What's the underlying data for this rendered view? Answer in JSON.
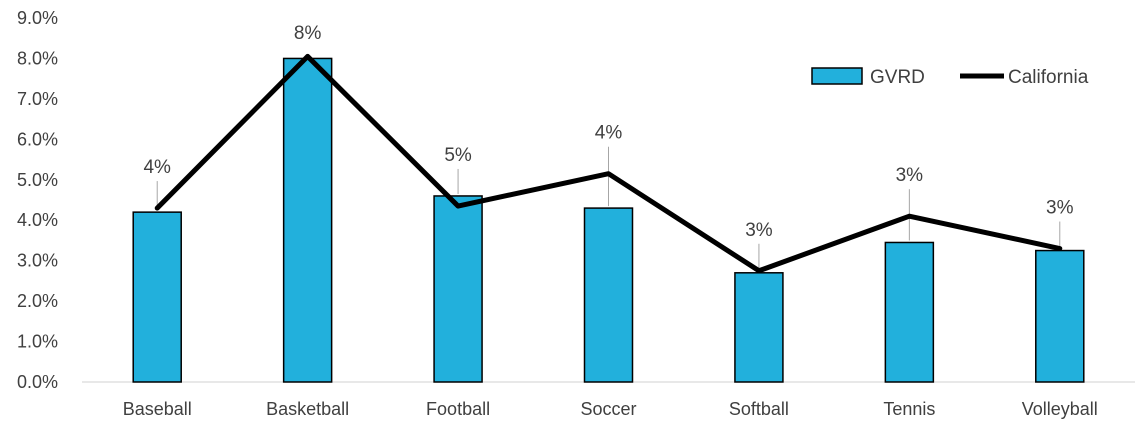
{
  "chart_data": {
    "type": "bar",
    "categories": [
      "Baseball",
      "Basketball",
      "Football",
      "Soccer",
      "Softball",
      "Tennis",
      "Volleyball"
    ],
    "series": [
      {
        "name": "GVRD",
        "type": "bar",
        "color": "#22B0DC",
        "values": [
          4.2,
          8.0,
          4.6,
          4.3,
          2.7,
          3.45,
          3.25
        ],
        "data_labels": [
          "4%",
          "8%",
          "5%",
          "4%",
          "3%",
          "3%",
          "3%"
        ]
      },
      {
        "name": "California",
        "type": "line",
        "color": "#000000",
        "values": [
          4.3,
          8.05,
          4.35,
          5.15,
          2.75,
          4.1,
          3.3
        ]
      }
    ],
    "ylim": [
      0,
      9
    ],
    "y_ticks": [
      "0.0%",
      "1.0%",
      "2.0%",
      "3.0%",
      "4.0%",
      "5.0%",
      "6.0%",
      "7.0%",
      "8.0%",
      "9.0%"
    ],
    "grid": false,
    "legend": {
      "position": "top-right"
    }
  }
}
